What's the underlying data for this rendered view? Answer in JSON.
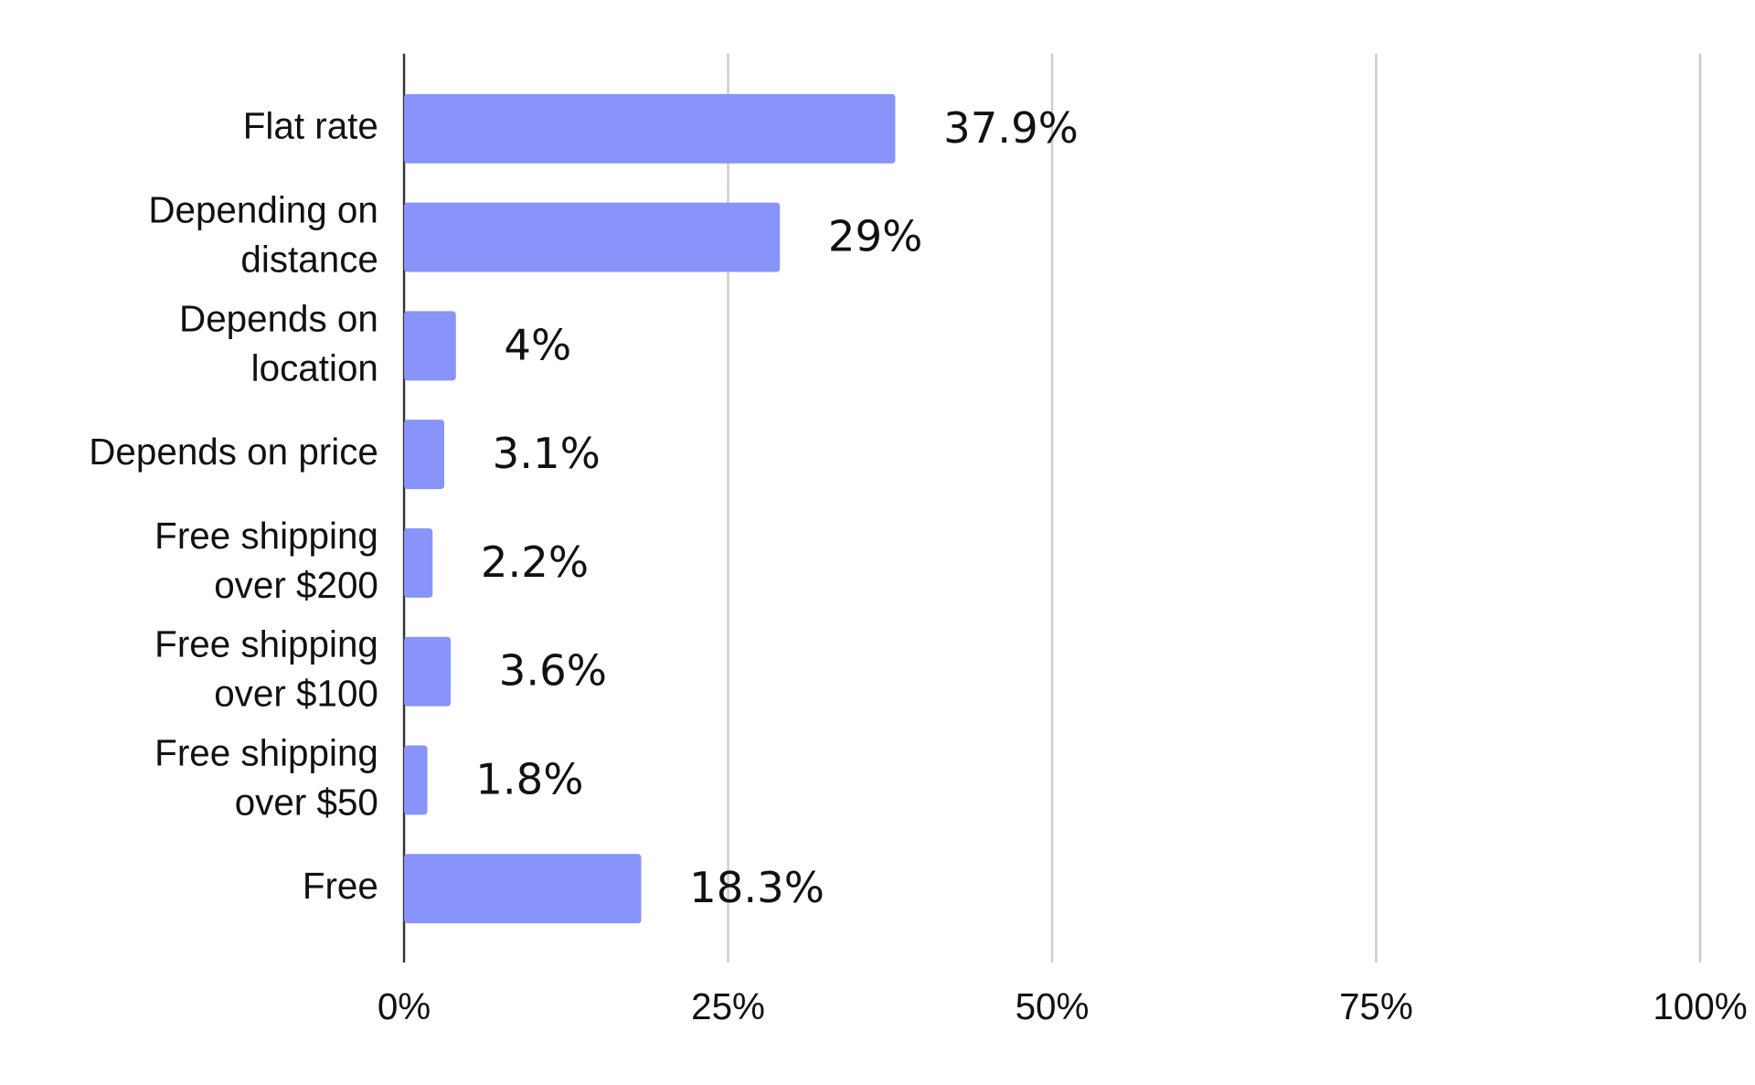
{
  "chart_data": {
    "type": "bar",
    "orientation": "horizontal",
    "categories": [
      "Flat rate",
      "Depending on\ndistance",
      "Depends on\nlocation",
      "Depends on price",
      "Free shipping\nover $200",
      "Free shipping\nover $100",
      "Free shipping\nover $50",
      "Free"
    ],
    "values": [
      37.9,
      29,
      4,
      3.1,
      2.2,
      3.6,
      1.8,
      18.3
    ],
    "value_labels": [
      "37.9%",
      "29%",
      "4%",
      "3.1%",
      "2.2%",
      "3.6%",
      "1.8%",
      "18.3%"
    ],
    "color": "#8894f9",
    "xlim": [
      0,
      100
    ],
    "xticks": [
      {
        "value": 0,
        "label": "0%"
      },
      {
        "value": 25,
        "label": "25%"
      },
      {
        "value": 50,
        "label": "50%"
      },
      {
        "value": 75,
        "label": "75%"
      },
      {
        "value": 100,
        "label": "100%"
      }
    ],
    "grid": true
  }
}
